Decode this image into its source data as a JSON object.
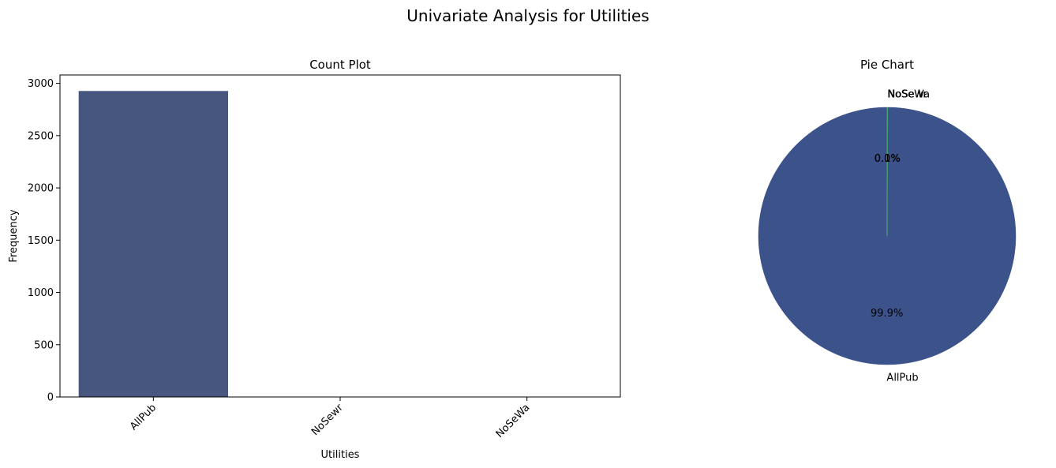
{
  "figure": {
    "title": "Univariate Analysis for Utilities"
  },
  "chart_data": [
    {
      "type": "bar",
      "title": "Count Plot",
      "xlabel": "Utilities",
      "ylabel": "Frequency",
      "categories": [
        "AllPub",
        "NoSewr",
        "NoSeWa"
      ],
      "values": [
        2927,
        2,
        1
      ],
      "ylim": [
        0,
        3080
      ],
      "yticks": [
        0,
        500,
        1000,
        1500,
        2000,
        2500,
        3000
      ],
      "xtick_rotation": 45,
      "bar_color": "#46567e",
      "grid": false
    },
    {
      "type": "pie",
      "title": "Pie Chart",
      "labels": [
        "AllPub",
        "NoSewr",
        "NoSeWa"
      ],
      "values": [
        2927,
        2,
        1
      ],
      "autopct": [
        "99.9%",
        "0.1%",
        "0.0%"
      ],
      "colors": [
        "#3c528b",
        "#2a788e",
        "#5cc863"
      ],
      "start_angle_deg": 90
    }
  ]
}
